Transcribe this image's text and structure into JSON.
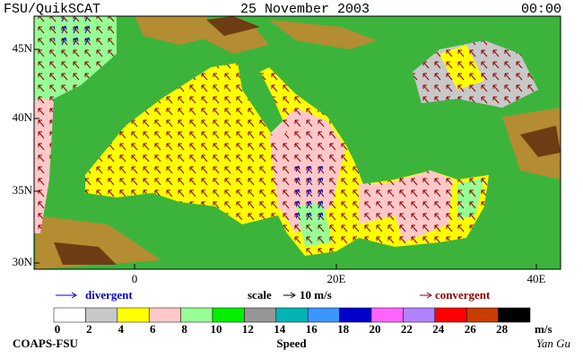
{
  "header": {
    "source": "FSU/QuikSCAT",
    "date": "25 November 2003",
    "time": "00:00"
  },
  "map": {
    "lat_labels": [
      "45N",
      "40N",
      "35N",
      "30N"
    ],
    "lon_labels": [
      "0",
      "20E",
      "40E"
    ]
  },
  "legend": {
    "divergent": "divergent",
    "scale": "scale",
    "scale_value": "10 m/s",
    "convergent": "convergent"
  },
  "colorbar": {
    "title": "Speed",
    "unit": "m/s",
    "ticks": [
      0,
      2,
      4,
      6,
      8,
      10,
      12,
      14,
      16,
      18,
      20,
      22,
      24,
      26,
      28
    ],
    "colors": [
      "#ffffff",
      "#c8c8c8",
      "#ffff00",
      "#ffc8c8",
      "#96ff96",
      "#00f000",
      "#969696",
      "#00b4b4",
      "#3c96ff",
      "#0000c8",
      "#ff64ff",
      "#b482ff",
      "#ff0000",
      "#c83c00",
      "#000000"
    ]
  },
  "footer": {
    "credit": "COAPS-FSU",
    "signature": "Yan Gu"
  }
}
